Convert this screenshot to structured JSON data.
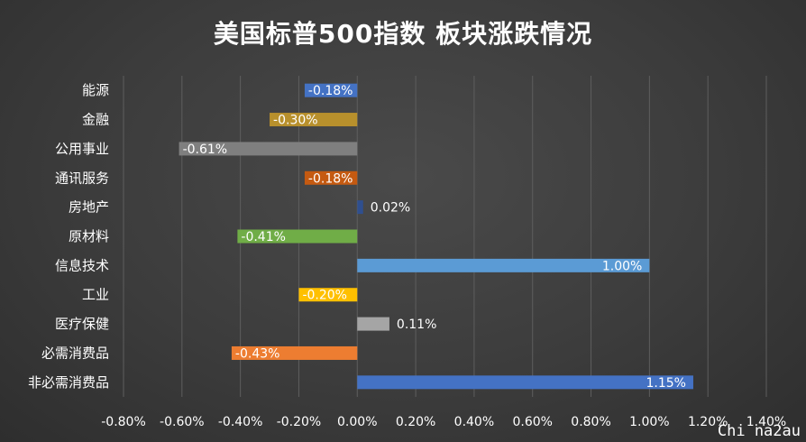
{
  "watermark": "Chi na2au",
  "chart_data": {
    "type": "bar",
    "orientation": "horizontal",
    "title": "美国标普500指数 板块涨跌情况",
    "categories": [
      "能源",
      "金融",
      "公用事业",
      "通讯服务",
      "房地产",
      "原材料",
      "信息技术",
      "工业",
      "医疗保健",
      "必需消费品",
      "非必需消费品"
    ],
    "values": [
      -0.18,
      -0.3,
      -0.61,
      -0.18,
      0.02,
      -0.41,
      1.0,
      -0.2,
      0.11,
      -0.43,
      1.15
    ],
    "data_labels": [
      "-0.18%",
      "-0.30%",
      "-0.61%",
      "-0.18%",
      "0.02%",
      "-0.41%",
      "1.00%",
      "-0.20%",
      "0.11%",
      "-0.43%",
      "1.15%"
    ],
    "colors": [
      "#4472c4",
      "#b8902c",
      "#7f7f7f",
      "#c55a11",
      "#2f4f8f",
      "#70ad47",
      "#5b9bd5",
      "#ffc000",
      "#a5a5a5",
      "#ed7d31",
      "#4472c4"
    ],
    "xlim": [
      -0.8,
      1.4
    ],
    "xticks": [
      -0.8,
      -0.6,
      -0.4,
      -0.2,
      0.0,
      0.2,
      0.4,
      0.6,
      0.8,
      1.0,
      1.2,
      1.4
    ],
    "xtick_labels": [
      "-0.80%",
      "-0.60%",
      "-0.40%",
      "-0.20%",
      "0.00%",
      "0.20%",
      "0.40%",
      "0.60%",
      "0.80%",
      "1.00%",
      "1.20%",
      "1.40%"
    ],
    "grid": true,
    "legend": "none"
  }
}
